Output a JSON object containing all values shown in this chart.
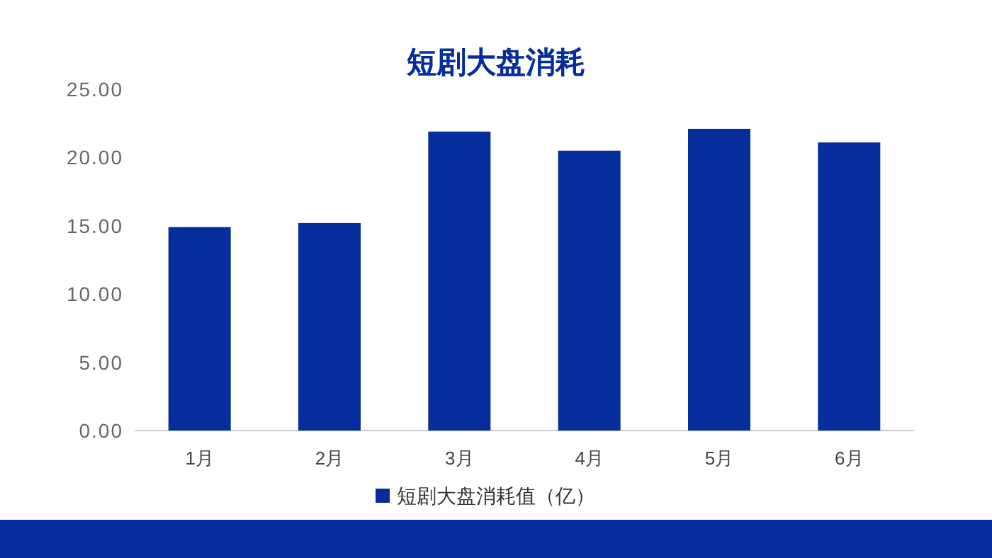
{
  "chart_data": {
    "type": "bar",
    "title": "短剧大盘消耗",
    "categories": [
      "1月",
      "2月",
      "3月",
      "4月",
      "5月",
      "6月"
    ],
    "series": [
      {
        "name": "短剧大盘消耗值（亿）",
        "color": "#062d9c",
        "values": [
          14.9,
          15.2,
          21.9,
          20.5,
          22.1,
          21.1
        ]
      }
    ],
    "ylim": [
      0,
      25
    ],
    "yticks": [
      {
        "value": 0,
        "label": "0.00"
      },
      {
        "value": 5,
        "label": "5.00"
      },
      {
        "value": 10,
        "label": "10.00"
      },
      {
        "value": 15,
        "label": "15.00"
      },
      {
        "value": 20,
        "label": "20.00"
      },
      {
        "value": 25,
        "label": "25.00"
      }
    ],
    "legend": "bottom"
  }
}
